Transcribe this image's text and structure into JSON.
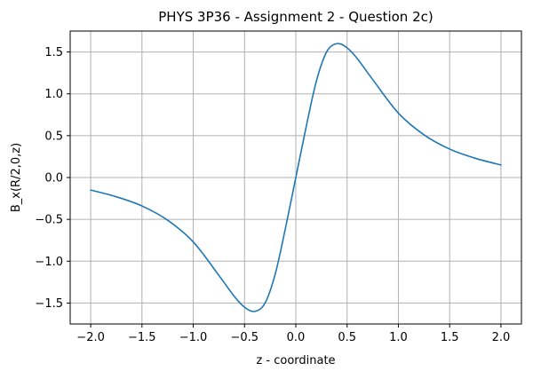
{
  "chart_data": {
    "type": "line",
    "title": "PHYS 3P36 - Assignment 2 - Question 2c)",
    "xlabel": "z - coordinate",
    "ylabel": "B_x(R/2,0,z)",
    "xlim": [
      -2.2,
      2.2
    ],
    "ylim": [
      -1.75,
      1.75
    ],
    "grid": true,
    "x_ticks": [
      -2.0,
      -1.5,
      -1.0,
      -0.5,
      0.0,
      0.5,
      1.0,
      1.5,
      2.0
    ],
    "x_tick_labels": [
      "−2.0",
      "−1.5",
      "−1.0",
      "−0.5",
      "0.0",
      "0.5",
      "1.0",
      "1.5",
      "2.0"
    ],
    "y_ticks": [
      -1.5,
      -1.0,
      -0.5,
      0.0,
      0.5,
      1.0,
      1.5
    ],
    "y_tick_labels": [
      "−1.5",
      "−1.0",
      "−0.5",
      "0.0",
      "0.5",
      "1.0",
      "1.5"
    ],
    "series": [
      {
        "color": "#1f77b4",
        "x": [
          -2.0,
          -1.75,
          -1.5,
          -1.25,
          -1.0,
          -0.75,
          -0.6,
          -0.5,
          -0.4,
          -0.3,
          -0.2,
          -0.1,
          0.0,
          0.1,
          0.2,
          0.3,
          0.4,
          0.5,
          0.6,
          0.75,
          1.0,
          1.25,
          1.5,
          1.75,
          2.0
        ],
        "y": [
          -0.15,
          -0.23,
          -0.34,
          -0.51,
          -0.77,
          -1.17,
          -1.42,
          -1.55,
          -1.6,
          -1.5,
          -1.15,
          -0.6,
          0.0,
          0.6,
          1.15,
          1.5,
          1.6,
          1.55,
          1.42,
          1.17,
          0.77,
          0.51,
          0.34,
          0.23,
          0.15
        ]
      }
    ]
  }
}
